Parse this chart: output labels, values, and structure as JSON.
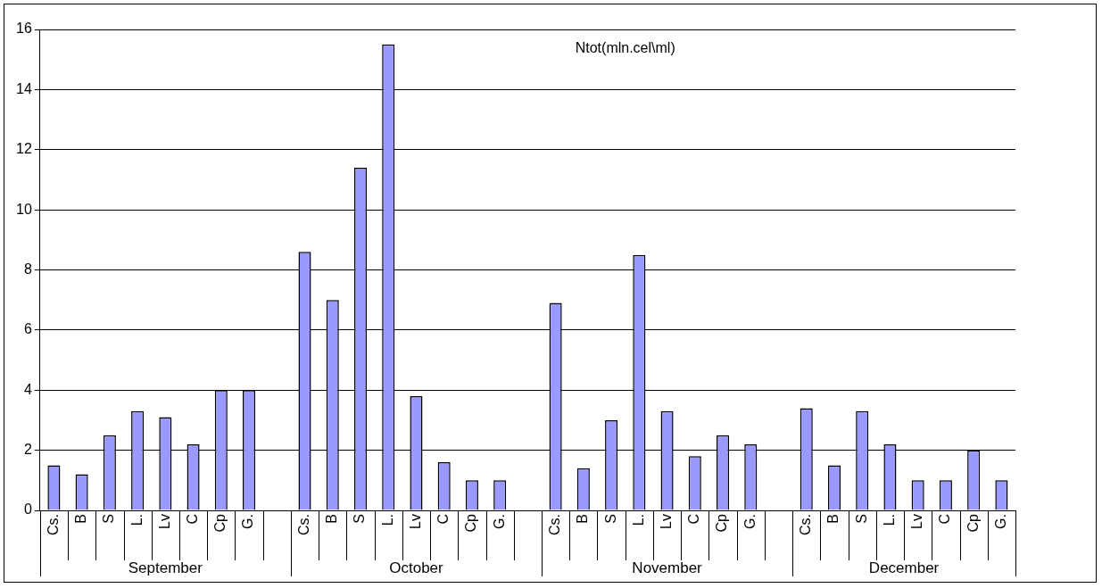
{
  "chart_data": {
    "type": "bar",
    "title": "Ntot(mln.cel\\ml)",
    "categories": [
      "Cs.",
      "B",
      "S",
      "L.",
      "Lv",
      "C",
      "Cp",
      "G.",
      null,
      "Cs.",
      "B",
      "S",
      "L.",
      "Lv",
      "C",
      "Cp",
      "G.",
      null,
      "Cs.",
      "B",
      "S",
      "L.",
      "Lv",
      "C",
      "Cp",
      "G.",
      null,
      "Cs.",
      "B",
      "S",
      "L.",
      "Lv",
      "C",
      "Cp",
      "G."
    ],
    "values": [
      1.5,
      1.2,
      2.5,
      3.3,
      3.1,
      2.2,
      4.0,
      4.0,
      null,
      8.6,
      7.0,
      11.4,
      15.5,
      3.8,
      1.6,
      1.0,
      1.0,
      null,
      6.9,
      1.4,
      3.0,
      8.5,
      3.3,
      1.8,
      2.5,
      2.2,
      null,
      3.4,
      1.5,
      3.3,
      2.2,
      1.0,
      1.0,
      2.0,
      1.0
    ],
    "color": "#9999ff",
    "ylim": [
      0,
      16
    ],
    "yticks": [
      0,
      2,
      4,
      6,
      8,
      10,
      12,
      14,
      16
    ],
    "grid": "y",
    "annotations": [
      "September",
      "October",
      "November",
      "December"
    ]
  }
}
